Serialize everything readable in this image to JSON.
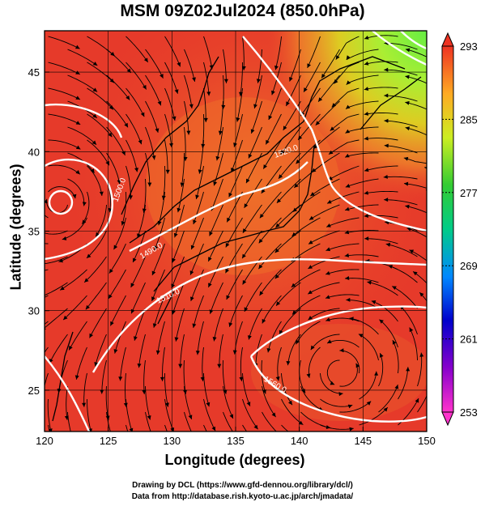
{
  "title": "MSM 09Z02Jul2024 (850.0hPa)",
  "axes": {
    "xlabel": "Longitude (degrees)",
    "ylabel": "Latitude  (degrees)",
    "xticks": [
      "120",
      "125",
      "130",
      "135",
      "140",
      "145",
      "150"
    ],
    "yticks": [
      "25",
      "30",
      "35",
      "40",
      "45"
    ]
  },
  "colorbar": {
    "ticks": [
      "293",
      "285",
      "277",
      "269",
      "261",
      "253"
    ]
  },
  "contour_labels": [
    "1500.0",
    "1490.0",
    "1510.0",
    "1520.0",
    "1560.0"
  ],
  "credits": {
    "line1": "Drawing by DCL (https://www.gfd-dennou.org/library/dcl/)",
    "line2": "Data from http://database.rish.kyoto-u.ac.jp/arch/jmadata/"
  },
  "chart_data": {
    "type": "heatmap",
    "title": "MSM 09Z02Jul2024 (850.0hPa)",
    "xlabel": "Longitude (degrees)",
    "ylabel": "Latitude  (degrees)",
    "xlim": [
      120,
      150
    ],
    "ylim": [
      22.4,
      47.6
    ],
    "colorbar_range": [
      253,
      293
    ],
    "colorbar_ticks": [
      293,
      285,
      277,
      269,
      261,
      253
    ],
    "contour_labels": [
      "1500.0",
      "1490.0",
      "1510.0",
      "1520.0",
      "1560.0"
    ],
    "grid": true,
    "colors": {
      "warm": "#e8402a",
      "mid": "#f07a2a",
      "yellow": "#d6d21e",
      "green": "#7ee030",
      "contour": "#ffffff",
      "streamline": "#000000"
    }
  }
}
